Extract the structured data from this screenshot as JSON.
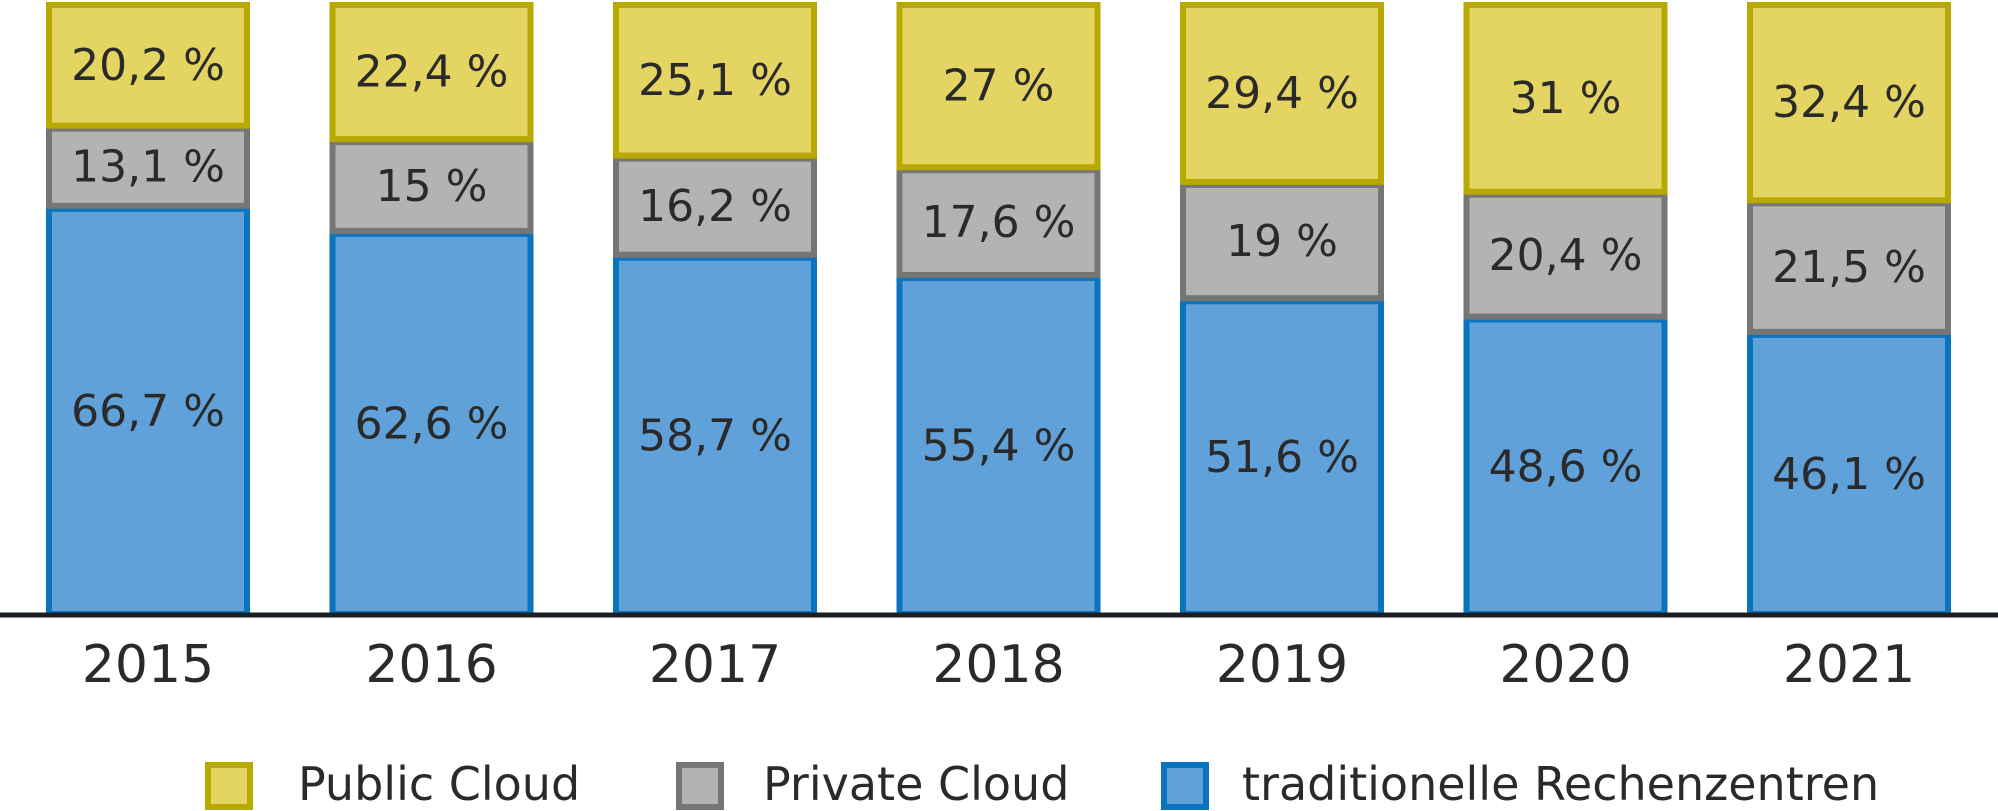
{
  "chart_data": {
    "type": "bar",
    "stacked": true,
    "title": "",
    "xlabel": "",
    "ylabel": "",
    "ylim": [
      0,
      100
    ],
    "grid": false,
    "legend_position": "bottom",
    "categories": [
      "2015",
      "2016",
      "2017",
      "2018",
      "2019",
      "2020",
      "2021"
    ],
    "series": [
      {
        "name": "traditionelle Rechenzentren",
        "values": [
          66.7,
          62.6,
          58.7,
          55.4,
          51.6,
          48.6,
          46.1
        ],
        "labels": [
          "66,7 %",
          "62,6 %",
          "58,7 %",
          "55,4 %",
          "51,6 %",
          "48,6 %",
          "46,1 %"
        ],
        "fill": "#5fa1d8",
        "stroke": "#0a74bf"
      },
      {
        "name": "Private Cloud",
        "values": [
          13.1,
          15,
          16.2,
          17.6,
          19,
          20.4,
          21.5
        ],
        "labels": [
          "13,1 %",
          "15 %",
          "16,2 %",
          "17,6 %",
          "19 %",
          "20,4 %",
          "21,5 %"
        ],
        "fill": "#b3b3b3",
        "stroke": "#767676"
      },
      {
        "name": "Public Cloud",
        "values": [
          20.2,
          22.4,
          25.1,
          27,
          29.4,
          31,
          32.4
        ],
        "labels": [
          "20,2 %",
          "22,4 %",
          "25,1 %",
          "27 %",
          "29,4 %",
          "31 %",
          "32,4 %"
        ],
        "fill": "#e4d562",
        "stroke": "#b9a800"
      }
    ],
    "legend": [
      "Public Cloud",
      "Private Cloud",
      "traditionelle Rechenzentren"
    ],
    "axis_color": "#1a1f26"
  }
}
